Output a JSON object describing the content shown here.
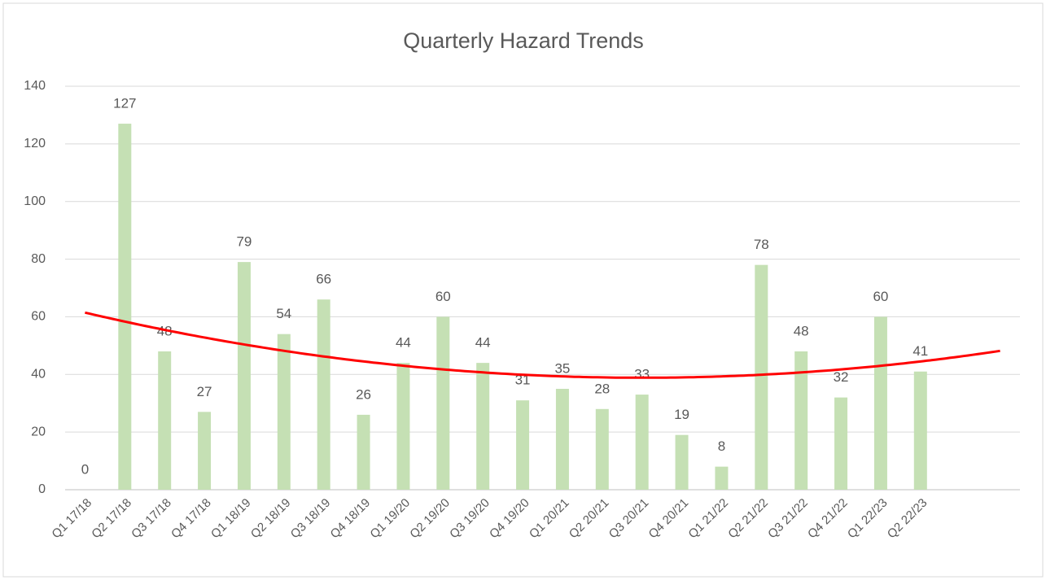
{
  "chart_data": {
    "type": "bar",
    "title": "Quarterly Hazard Trends",
    "categories": [
      "Q1 17/18",
      "Q2 17/18",
      "Q3 17/18",
      "Q4 17/18",
      "Q1 18/19",
      "Q2 18/19",
      "Q3 18/19",
      "Q4 18/19",
      "Q1 19/20",
      "Q2 19/20",
      "Q3 19/20",
      "Q4 19/20",
      "Q1 20/21",
      "Q2 20/21",
      "Q3 20/21",
      "Q4 20/21",
      "Q1 21/22",
      "Q2 21/22",
      "Q3 21/22",
      "Q4 21/22",
      "Q1 22/23",
      "Q2 22/23",
      null,
      null
    ],
    "values": [
      0,
      127,
      48,
      27,
      79,
      54,
      66,
      26,
      44,
      60,
      44,
      31,
      35,
      28,
      33,
      19,
      8,
      78,
      48,
      32,
      60,
      41,
      null,
      null
    ],
    "color": "#c5e0b4",
    "ylim": [
      0,
      140
    ],
    "yticks": [
      0,
      20,
      40,
      60,
      80,
      100,
      120,
      140
    ],
    "grid": true,
    "trendline": {
      "kind": "polynomial",
      "order": 2,
      "color": "#ff0000"
    }
  }
}
